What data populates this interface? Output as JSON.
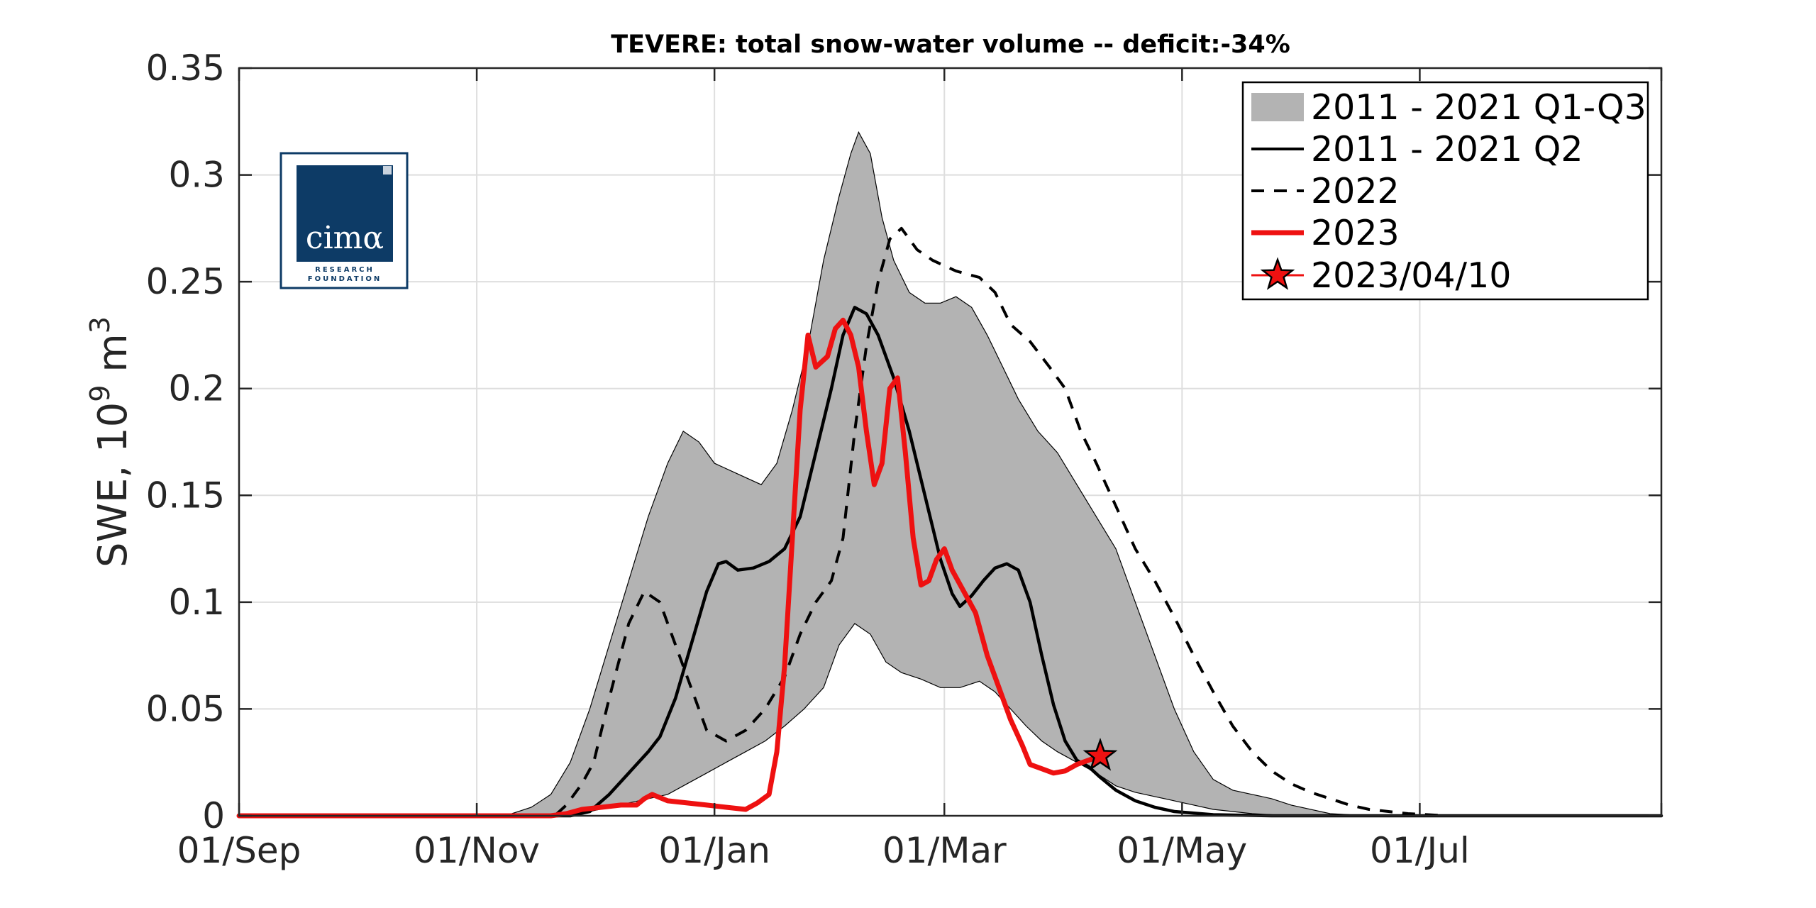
{
  "chart_data": {
    "type": "area",
    "title": "TEVERE: total snow-water volume -- deficit:-34%",
    "ylabel": "SWE, 10",
    "ylabel_sup": "9",
    "ylabel_unit_base": " m",
    "ylabel_unit_sup": "3",
    "xlim": [
      0,
      365
    ],
    "ylim": [
      0,
      0.35
    ],
    "grid": true,
    "legend_position": "top-right",
    "x_unit": "days from 01/Sep",
    "x_ticks": [
      {
        "x": 0,
        "label": "01/Sep"
      },
      {
        "x": 61,
        "label": "01/Nov"
      },
      {
        "x": 122,
        "label": "01/Jan"
      },
      {
        "x": 181,
        "label": "01/Mar"
      },
      {
        "x": 242,
        "label": "01/May"
      },
      {
        "x": 303,
        "label": "01/Jul"
      }
    ],
    "x_gridlines": [
      0,
      61,
      122,
      181,
      242,
      303,
      365
    ],
    "y_ticks": [
      {
        "y": 0,
        "label": "0"
      },
      {
        "y": 0.05,
        "label": "0.05"
      },
      {
        "y": 0.1,
        "label": "0.1"
      },
      {
        "y": 0.15,
        "label": "0.15"
      },
      {
        "y": 0.2,
        "label": "0.2"
      },
      {
        "y": 0.25,
        "label": "0.25"
      },
      {
        "y": 0.3,
        "label": "0.3"
      },
      {
        "y": 0.35,
        "label": "0.35"
      }
    ],
    "band": {
      "name": "2011 - 2021 Q1-Q3",
      "color": "#b3b3b3",
      "upper": [
        [
          0,
          0
        ],
        [
          60,
          0
        ],
        [
          70,
          0.001
        ],
        [
          75,
          0.004
        ],
        [
          80,
          0.01
        ],
        [
          85,
          0.025
        ],
        [
          90,
          0.05
        ],
        [
          95,
          0.08
        ],
        [
          100,
          0.11
        ],
        [
          105,
          0.14
        ],
        [
          110,
          0.165
        ],
        [
          114,
          0.18
        ],
        [
          118,
          0.175
        ],
        [
          122,
          0.165
        ],
        [
          128,
          0.16
        ],
        [
          134,
          0.155
        ],
        [
          138,
          0.165
        ],
        [
          142,
          0.19
        ],
        [
          146,
          0.22
        ],
        [
          150,
          0.26
        ],
        [
          154,
          0.29
        ],
        [
          157,
          0.31
        ],
        [
          159,
          0.32
        ],
        [
          162,
          0.31
        ],
        [
          165,
          0.28
        ],
        [
          168,
          0.26
        ],
        [
          172,
          0.245
        ],
        [
          176,
          0.24
        ],
        [
          180,
          0.24
        ],
        [
          184,
          0.243
        ],
        [
          188,
          0.238
        ],
        [
          192,
          0.225
        ],
        [
          196,
          0.21
        ],
        [
          200,
          0.195
        ],
        [
          205,
          0.18
        ],
        [
          210,
          0.17
        ],
        [
          215,
          0.155
        ],
        [
          220,
          0.14
        ],
        [
          225,
          0.125
        ],
        [
          230,
          0.1
        ],
        [
          235,
          0.075
        ],
        [
          240,
          0.05
        ],
        [
          245,
          0.03
        ],
        [
          250,
          0.017
        ],
        [
          255,
          0.012
        ],
        [
          260,
          0.01
        ],
        [
          265,
          0.008
        ],
        [
          270,
          0.005
        ],
        [
          280,
          0.001
        ],
        [
          290,
          0
        ],
        [
          365,
          0
        ]
      ],
      "lower": [
        [
          0,
          0
        ],
        [
          80,
          0
        ],
        [
          85,
          0.001
        ],
        [
          90,
          0.002
        ],
        [
          95,
          0.004
        ],
        [
          100,
          0.006
        ],
        [
          105,
          0.008
        ],
        [
          110,
          0.01
        ],
        [
          115,
          0.015
        ],
        [
          120,
          0.02
        ],
        [
          125,
          0.025
        ],
        [
          130,
          0.03
        ],
        [
          135,
          0.035
        ],
        [
          140,
          0.042
        ],
        [
          145,
          0.05
        ],
        [
          150,
          0.06
        ],
        [
          154,
          0.08
        ],
        [
          158,
          0.09
        ],
        [
          162,
          0.085
        ],
        [
          166,
          0.072
        ],
        [
          170,
          0.067
        ],
        [
          175,
          0.064
        ],
        [
          180,
          0.06
        ],
        [
          185,
          0.06
        ],
        [
          190,
          0.063
        ],
        [
          194,
          0.058
        ],
        [
          198,
          0.05
        ],
        [
          202,
          0.042
        ],
        [
          206,
          0.035
        ],
        [
          210,
          0.03
        ],
        [
          215,
          0.025
        ],
        [
          220,
          0.02
        ],
        [
          225,
          0.014
        ],
        [
          230,
          0.011
        ],
        [
          235,
          0.009
        ],
        [
          240,
          0.007
        ],
        [
          245,
          0.005
        ],
        [
          250,
          0.003
        ],
        [
          255,
          0.002
        ],
        [
          260,
          0.001
        ],
        [
          270,
          0
        ],
        [
          365,
          0
        ]
      ]
    },
    "series": [
      {
        "name": "2011 - 2021 Q2",
        "color": "#000000",
        "style": "solid",
        "points": [
          [
            0,
            0
          ],
          [
            85,
            0
          ],
          [
            90,
            0.002
          ],
          [
            95,
            0.01
          ],
          [
            100,
            0.02
          ],
          [
            105,
            0.03
          ],
          [
            108,
            0.037
          ],
          [
            112,
            0.055
          ],
          [
            116,
            0.08
          ],
          [
            120,
            0.105
          ],
          [
            123,
            0.118
          ],
          [
            125,
            0.119
          ],
          [
            128,
            0.115
          ],
          [
            132,
            0.116
          ],
          [
            136,
            0.119
          ],
          [
            140,
            0.125
          ],
          [
            144,
            0.14
          ],
          [
            148,
            0.17
          ],
          [
            152,
            0.2
          ],
          [
            155,
            0.225
          ],
          [
            158,
            0.238
          ],
          [
            161,
            0.235
          ],
          [
            164,
            0.225
          ],
          [
            168,
            0.205
          ],
          [
            172,
            0.18
          ],
          [
            176,
            0.15
          ],
          [
            180,
            0.12
          ],
          [
            183,
            0.104
          ],
          [
            185,
            0.098
          ],
          [
            188,
            0.103
          ],
          [
            191,
            0.11
          ],
          [
            194,
            0.116
          ],
          [
            197,
            0.118
          ],
          [
            200,
            0.115
          ],
          [
            203,
            0.1
          ],
          [
            206,
            0.075
          ],
          [
            209,
            0.052
          ],
          [
            212,
            0.035
          ],
          [
            215,
            0.026
          ],
          [
            218,
            0.023
          ],
          [
            221,
            0.018
          ],
          [
            225,
            0.012
          ],
          [
            230,
            0.007
          ],
          [
            235,
            0.004
          ],
          [
            240,
            0.002
          ],
          [
            250,
            0.0005
          ],
          [
            265,
            0
          ],
          [
            365,
            0
          ]
        ]
      },
      {
        "name": "2022",
        "color": "#000000",
        "style": "dashed",
        "points": [
          [
            0,
            0
          ],
          [
            81,
            0
          ],
          [
            84,
            0.005
          ],
          [
            88,
            0.015
          ],
          [
            91,
            0.025
          ],
          [
            95,
            0.055
          ],
          [
            100,
            0.09
          ],
          [
            104,
            0.105
          ],
          [
            108,
            0.1
          ],
          [
            112,
            0.08
          ],
          [
            116,
            0.06
          ],
          [
            120,
            0.04
          ],
          [
            125,
            0.035
          ],
          [
            130,
            0.04
          ],
          [
            135,
            0.05
          ],
          [
            140,
            0.065
          ],
          [
            144,
            0.085
          ],
          [
            148,
            0.1
          ],
          [
            152,
            0.11
          ],
          [
            155,
            0.13
          ],
          [
            158,
            0.18
          ],
          [
            161,
            0.22
          ],
          [
            164,
            0.25
          ],
          [
            167,
            0.27
          ],
          [
            170,
            0.275
          ],
          [
            174,
            0.265
          ],
          [
            178,
            0.26
          ],
          [
            184,
            0.255
          ],
          [
            190,
            0.252
          ],
          [
            194,
            0.245
          ],
          [
            198,
            0.23
          ],
          [
            203,
            0.222
          ],
          [
            208,
            0.21
          ],
          [
            212,
            0.2
          ],
          [
            216,
            0.18
          ],
          [
            220,
            0.165
          ],
          [
            225,
            0.145
          ],
          [
            230,
            0.125
          ],
          [
            235,
            0.11
          ],
          [
            240,
            0.093
          ],
          [
            245,
            0.075
          ],
          [
            250,
            0.058
          ],
          [
            255,
            0.042
          ],
          [
            260,
            0.03
          ],
          [
            265,
            0.021
          ],
          [
            270,
            0.015
          ],
          [
            275,
            0.011
          ],
          [
            280,
            0.008
          ],
          [
            285,
            0.005
          ],
          [
            290,
            0.003
          ],
          [
            300,
            0.001
          ],
          [
            310,
            0
          ],
          [
            365,
            0
          ]
        ]
      },
      {
        "name": "2023",
        "color": "#ee1111",
        "style": "solid",
        "points": [
          [
            0,
            0
          ],
          [
            80,
            0
          ],
          [
            84,
            0.001
          ],
          [
            88,
            0.003
          ],
          [
            93,
            0.004
          ],
          [
            98,
            0.005
          ],
          [
            102,
            0.005
          ],
          [
            104,
            0.008
          ],
          [
            106,
            0.01
          ],
          [
            110,
            0.007
          ],
          [
            115,
            0.006
          ],
          [
            120,
            0.005
          ],
          [
            125,
            0.004
          ],
          [
            130,
            0.003
          ],
          [
            133,
            0.006
          ],
          [
            136,
            0.01
          ],
          [
            138,
            0.03
          ],
          [
            140,
            0.07
          ],
          [
            142,
            0.13
          ],
          [
            144,
            0.19
          ],
          [
            146,
            0.225
          ],
          [
            148,
            0.21
          ],
          [
            151,
            0.215
          ],
          [
            153,
            0.228
          ],
          [
            155,
            0.232
          ],
          [
            157,
            0.225
          ],
          [
            159,
            0.21
          ],
          [
            161,
            0.18
          ],
          [
            163,
            0.155
          ],
          [
            165,
            0.165
          ],
          [
            167,
            0.2
          ],
          [
            169,
            0.205
          ],
          [
            171,
            0.17
          ],
          [
            173,
            0.13
          ],
          [
            175,
            0.108
          ],
          [
            177,
            0.11
          ],
          [
            179,
            0.12
          ],
          [
            181,
            0.125
          ],
          [
            183,
            0.115
          ],
          [
            186,
            0.105
          ],
          [
            189,
            0.095
          ],
          [
            192,
            0.075
          ],
          [
            195,
            0.06
          ],
          [
            198,
            0.045
          ],
          [
            201,
            0.033
          ],
          [
            203,
            0.024
          ],
          [
            206,
            0.022
          ],
          [
            209,
            0.02
          ],
          [
            212,
            0.021
          ],
          [
            215,
            0.024
          ],
          [
            221,
            0.028
          ]
        ]
      }
    ],
    "marker": {
      "name": "2023/04/10",
      "x": 221,
      "y": 0.028,
      "shape": "star",
      "fill": "#ee1111",
      "edge": "#000000"
    }
  },
  "logo": {
    "main_text": "cimα",
    "sub_text_1": "RESEARCH",
    "sub_text_2": "FOUNDATION",
    "color": "#0d3b66"
  }
}
